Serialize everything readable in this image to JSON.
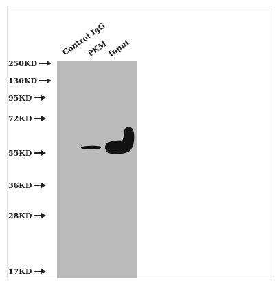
{
  "lanes": [
    {
      "label": "Control IgG"
    },
    {
      "label": "PKM"
    },
    {
      "label": "Input"
    }
  ],
  "markers": [
    {
      "label": "250KD"
    },
    {
      "label": "130KD"
    },
    {
      "label": "95KD"
    },
    {
      "label": "72KD"
    },
    {
      "label": "55KD"
    },
    {
      "label": "36KD"
    },
    {
      "label": "28KD"
    },
    {
      "label": "17KD"
    }
  ],
  "colors": {
    "membrane": "#bababa",
    "band": "#111111"
  }
}
